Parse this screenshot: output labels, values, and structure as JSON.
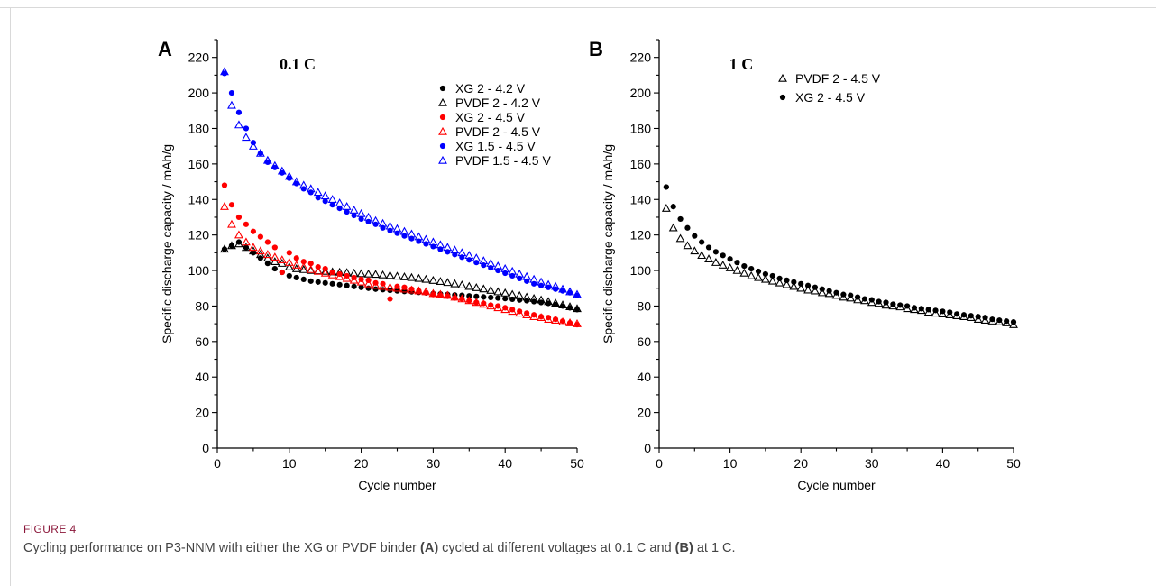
{
  "caption": {
    "label": "FIGURE 4",
    "text_parts": [
      {
        "t": "Cycling performance on P3-NNM with either the XG or PVDF binder ",
        "b": false
      },
      {
        "t": "(A)",
        "b": true
      },
      {
        "t": " cycled at different voltages at 0.1 C and ",
        "b": false
      },
      {
        "t": "(B)",
        "b": true
      },
      {
        "t": " at 1 C.",
        "b": false
      }
    ]
  },
  "chart_data": [
    {
      "type": "scatter",
      "panel_label": "A",
      "title": "0.1 C",
      "xlabel": "Cycle number",
      "ylabel": "Specific discharge capacity / mAh/g",
      "xlim": [
        0,
        50
      ],
      "ylim": [
        0,
        230
      ],
      "xticks": [
        0,
        10,
        20,
        30,
        40,
        50
      ],
      "yticks": [
        0,
        20,
        40,
        60,
        80,
        100,
        120,
        140,
        160,
        180,
        200,
        220
      ],
      "grid": false,
      "legend_position": "top-right",
      "series": [
        {
          "name": "XG 2 - 4.2 V",
          "marker": "circle",
          "color": "#000000",
          "x": [
            1,
            2,
            3,
            4,
            5,
            6,
            7,
            8,
            9,
            10,
            11,
            12,
            13,
            14,
            15,
            16,
            17,
            18,
            19,
            20,
            21,
            22,
            23,
            24,
            25,
            26,
            27,
            28,
            29,
            30,
            31,
            32,
            33,
            34,
            35,
            36,
            37,
            38,
            39,
            40,
            41,
            42,
            43,
            44,
            45,
            46,
            47,
            48,
            49,
            50
          ],
          "y": [
            112,
            114,
            116,
            113,
            110,
            107,
            104,
            101,
            99,
            97,
            96,
            95,
            94,
            93.5,
            93,
            92.5,
            92,
            91.5,
            91,
            90.5,
            90,
            89.5,
            89.2,
            88.8,
            88.5,
            88.2,
            88,
            87.7,
            87.4,
            87,
            86.8,
            86.5,
            86.2,
            86,
            85.7,
            85.4,
            85.1,
            84.8,
            84.5,
            84.2,
            83.8,
            83.4,
            83,
            82.5,
            82,
            81.5,
            80.8,
            80,
            79,
            78
          ]
        },
        {
          "name": "PVDF 2 - 4.2 V",
          "marker": "triangle-open",
          "color": "#000000",
          "x": [
            1,
            2,
            3,
            4,
            5,
            6,
            7,
            8,
            9,
            10,
            11,
            12,
            13,
            14,
            15,
            16,
            17,
            18,
            19,
            20,
            21,
            22,
            23,
            24,
            25,
            26,
            27,
            28,
            29,
            30,
            31,
            32,
            33,
            34,
            35,
            36,
            37,
            38,
            39,
            40,
            41,
            42,
            43,
            44,
            45,
            46,
            47,
            48,
            49,
            50
          ],
          "y": [
            112,
            114,
            115,
            113,
            111,
            109,
            107,
            105,
            104,
            102,
            101,
            100.5,
            100,
            99.8,
            99.5,
            99.2,
            99,
            98.8,
            98.5,
            98.2,
            98,
            97.8,
            97.5,
            97.2,
            96.8,
            96.4,
            96,
            95.5,
            95,
            94.4,
            93.8,
            93.2,
            92.5,
            91.8,
            91,
            90.3,
            89.6,
            88.8,
            88,
            87.3,
            86.5,
            85.8,
            85,
            84.2,
            83.4,
            82.5,
            81.6,
            80.6,
            79.6,
            78.5
          ]
        },
        {
          "name": "XG 2 - 4.5 V",
          "marker": "circle",
          "color": "#ff0000",
          "x": [
            1,
            2,
            3,
            4,
            5,
            6,
            7,
            8,
            9,
            10,
            11,
            12,
            13,
            14,
            15,
            16,
            17,
            18,
            19,
            20,
            21,
            22,
            23,
            24,
            25,
            26,
            27,
            28,
            29,
            30,
            31,
            32,
            33,
            34,
            35,
            36,
            37,
            38,
            39,
            40,
            41,
            42,
            43,
            44,
            45,
            46,
            47,
            48,
            49,
            50
          ],
          "y": [
            148,
            137,
            130,
            126,
            122,
            119,
            116,
            113,
            99,
            110,
            107,
            105,
            104,
            102,
            101,
            99,
            98,
            97,
            96,
            95,
            94.5,
            93,
            92.5,
            84,
            91,
            90.5,
            89.5,
            88.5,
            87.5,
            86.5,
            86,
            85.5,
            84.5,
            84,
            83,
            82,
            81.5,
            80.5,
            80,
            79,
            78,
            77,
            76,
            75,
            74,
            73.5,
            72.5,
            71.5,
            70.5,
            69.5
          ]
        },
        {
          "name": "PVDF 2 - 4.5 V",
          "marker": "triangle-open",
          "color": "#ff0000",
          "x": [
            1,
            2,
            3,
            4,
            5,
            6,
            7,
            8,
            9,
            10,
            11,
            12,
            13,
            14,
            15,
            16,
            17,
            18,
            19,
            20,
            21,
            22,
            23,
            24,
            25,
            26,
            27,
            28,
            29,
            30,
            31,
            32,
            33,
            34,
            35,
            36,
            37,
            38,
            39,
            40,
            41,
            42,
            43,
            44,
            45,
            46,
            47,
            48,
            49,
            50
          ],
          "y": [
            136,
            126,
            120,
            116,
            113,
            111,
            109,
            107.5,
            106,
            104.5,
            103,
            102,
            100.5,
            99.5,
            98.5,
            97.5,
            96.5,
            95.5,
            94.5,
            93.5,
            92.5,
            91.5,
            91,
            90.5,
            90,
            89.5,
            89,
            88.5,
            88,
            87,
            86.5,
            86,
            85,
            84,
            83,
            82,
            81,
            80,
            79,
            78,
            77,
            76,
            75,
            74,
            73.5,
            72.5,
            72,
            71,
            70.5,
            70
          ]
        },
        {
          "name": "XG 1.5 - 4.5 V",
          "marker": "circle",
          "color": "#0000ff",
          "x": [
            1,
            2,
            3,
            4,
            5,
            6,
            7,
            8,
            9,
            10,
            11,
            12,
            13,
            14,
            15,
            16,
            17,
            18,
            19,
            20,
            21,
            22,
            23,
            24,
            25,
            26,
            27,
            28,
            29,
            30,
            31,
            32,
            33,
            34,
            35,
            36,
            37,
            38,
            39,
            40,
            41,
            42,
            43,
            44,
            45,
            46,
            47,
            48,
            49,
            50
          ],
          "y": [
            211,
            200,
            189,
            180,
            172,
            166,
            161,
            158,
            155,
            152,
            149,
            146,
            144,
            141,
            139,
            137,
            135,
            133,
            131,
            129,
            127.5,
            126,
            124,
            122.5,
            121,
            119.5,
            118,
            116.5,
            115,
            113.5,
            112,
            110.5,
            109,
            107.5,
            106,
            104.5,
            103,
            101.5,
            100,
            98.5,
            97,
            95.5,
            94,
            92.5,
            91.5,
            90.5,
            89.5,
            88.5,
            87.5,
            86
          ]
        },
        {
          "name": "PVDF 1.5 - 4.5 V",
          "marker": "triangle-open",
          "color": "#0000ff",
          "x": [
            1,
            2,
            3,
            4,
            5,
            6,
            7,
            8,
            9,
            10,
            11,
            12,
            13,
            14,
            15,
            16,
            17,
            18,
            19,
            20,
            21,
            22,
            23,
            24,
            25,
            26,
            27,
            28,
            29,
            30,
            31,
            32,
            33,
            34,
            35,
            36,
            37,
            38,
            39,
            40,
            41,
            42,
            43,
            44,
            45,
            46,
            47,
            48,
            49,
            50
          ],
          "y": [
            212,
            193,
            182,
            175,
            170,
            166,
            162,
            159,
            156,
            153,
            150,
            148,
            146,
            144,
            142,
            140,
            138,
            136,
            134,
            132,
            130,
            128,
            126.5,
            125,
            123.5,
            122,
            120.5,
            119,
            117.5,
            116,
            114.5,
            113,
            111.5,
            110,
            108.5,
            107,
            105.5,
            104,
            102.5,
            101,
            99.5,
            98,
            96.5,
            95,
            93.5,
            92,
            91,
            89.5,
            88,
            86.5
          ]
        }
      ]
    },
    {
      "type": "scatter",
      "panel_label": "B",
      "title": "1 C",
      "xlabel": "Cycle number",
      "ylabel": "Specific discharge capacity / mAh/g",
      "xlim": [
        0,
        50
      ],
      "ylim": [
        0,
        230
      ],
      "xticks": [
        0,
        10,
        20,
        30,
        40,
        50
      ],
      "yticks": [
        0,
        20,
        40,
        60,
        80,
        100,
        120,
        140,
        160,
        180,
        200,
        220
      ],
      "grid": false,
      "legend_position": "top-right",
      "series": [
        {
          "name": "PVDF 2 - 4.5 V",
          "marker": "triangle-open",
          "color": "#000000",
          "x": [
            1,
            2,
            3,
            4,
            5,
            6,
            7,
            8,
            9,
            10,
            11,
            12,
            13,
            14,
            15,
            16,
            17,
            18,
            19,
            20,
            21,
            22,
            23,
            24,
            25,
            26,
            27,
            28,
            29,
            30,
            31,
            32,
            33,
            34,
            35,
            36,
            37,
            38,
            39,
            40,
            41,
            42,
            43,
            44,
            45,
            46,
            47,
            48,
            49,
            50
          ],
          "y": [
            135,
            124,
            118,
            114,
            111,
            108.5,
            106.5,
            104.5,
            103,
            101.5,
            100,
            98.5,
            97,
            96,
            95,
            94,
            93,
            92,
            91,
            90,
            89,
            88.5,
            87.5,
            87,
            86,
            85,
            84.5,
            83.5,
            83,
            82,
            81.5,
            80.5,
            80,
            79.5,
            78.5,
            78,
            77.5,
            76.5,
            76,
            75.5,
            75,
            74.5,
            74,
            73.5,
            72.5,
            72,
            71.5,
            71,
            70.5,
            69.5
          ]
        },
        {
          "name": "XG 2 - 4.5 V",
          "marker": "circle",
          "color": "#000000",
          "x": [
            1,
            2,
            3,
            4,
            5,
            6,
            7,
            8,
            9,
            10,
            11,
            12,
            13,
            14,
            15,
            16,
            17,
            18,
            19,
            20,
            21,
            22,
            23,
            24,
            25,
            26,
            27,
            28,
            29,
            30,
            31,
            32,
            33,
            34,
            35,
            36,
            37,
            38,
            39,
            40,
            41,
            42,
            43,
            44,
            45,
            46,
            47,
            48,
            49,
            50
          ],
          "y": [
            147,
            136,
            129,
            124,
            119.5,
            116,
            113,
            110.5,
            108.5,
            106.5,
            104.5,
            102.5,
            101,
            99.5,
            98,
            97,
            95.5,
            94.5,
            93.5,
            92.5,
            91.5,
            90.5,
            89.5,
            88.5,
            87.5,
            86.5,
            86,
            85,
            84,
            83.5,
            82.5,
            82,
            81,
            80.5,
            80,
            79,
            78.5,
            78,
            77.5,
            77,
            76.5,
            75.5,
            75,
            74.5,
            74,
            73.5,
            72.5,
            72,
            71.5,
            71
          ]
        }
      ]
    }
  ]
}
